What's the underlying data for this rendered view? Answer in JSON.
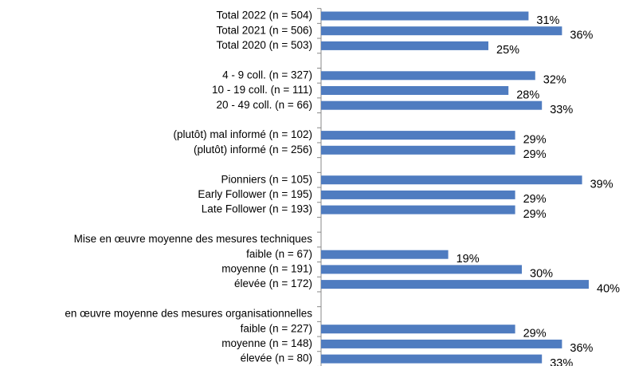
{
  "chart_data": {
    "type": "barh",
    "categories": [
      "Total 2022 (n = 504)",
      "Total 2021 (n = 506)",
      "Total 2020 (n = 503)",
      null,
      "4 - 9 coll. (n = 327)",
      "10 - 19 coll. (n = 111)",
      "20 - 49 coll. (n = 66)",
      null,
      "(plutôt) mal informé (n = 102)",
      "(plutôt) informé (n = 256)",
      null,
      "Pionniers (n = 105)",
      "Early Follower (n = 195)",
      "Late Follower (n = 193)",
      null,
      "Mise en œuvre moyenne des mesures techniques",
      "faible (n = 67)",
      "moyenne (n = 191)",
      "élevée (n = 172)",
      null,
      "en œuvre moyenne des mesures organisationnelles",
      "faible (n = 227)",
      "moyenne (n = 148)",
      "élevée (n = 80)"
    ],
    "values": [
      31,
      36,
      25,
      null,
      32,
      28,
      33,
      null,
      29,
      29,
      null,
      39,
      29,
      29,
      null,
      null,
      19,
      30,
      40,
      null,
      null,
      29,
      36,
      33
    ],
    "value_labels": [
      "31%",
      "36%",
      "25%",
      null,
      "32%",
      "28%",
      "33%",
      null,
      "29%",
      "29%",
      null,
      "39%",
      "29%",
      "29%",
      null,
      null,
      "19%",
      "30%",
      "40%",
      null,
      null,
      "29%",
      "36%",
      "33%"
    ],
    "color": "#4f7cc0"
  }
}
